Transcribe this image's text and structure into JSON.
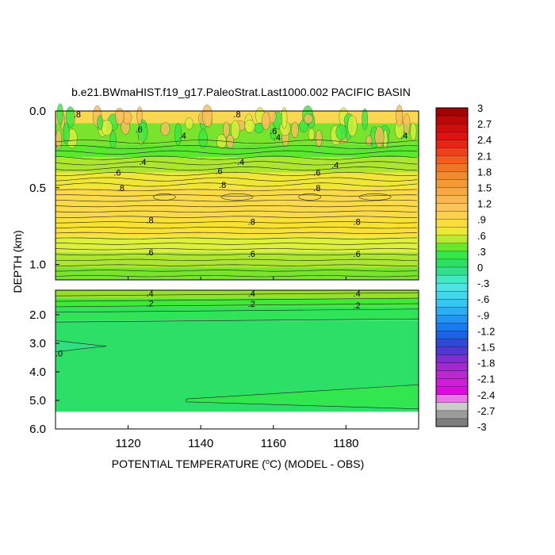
{
  "chart_data": {
    "type": "heatmap",
    "title": "b.e21.BWmaHIST.f19_g17.PaleoStrat.Last1000.002 PACIFIC BASIN",
    "xlabel": "POTENTIAL TEMPERATURE (",
    "xlabel_sup": "o",
    "xlabel_tail": "C) (MODEL - OBS)",
    "ylabel": "DEPTH (km)",
    "xlim": [
      1100,
      1200
    ],
    "x_ticks": [
      1120,
      1140,
      1160,
      1180
    ],
    "upper_panel": {
      "ylim": [
        0.0,
        1.1
      ],
      "y_ticks": [
        0.0,
        0.5,
        1.0
      ],
      "y_tick_labels": [
        "0.0",
        "0.5",
        "1.0"
      ],
      "bands": [
        {
          "depth_top": 0.0,
          "depth_bottom": 0.08,
          "value": 0.9
        },
        {
          "depth_top": 0.08,
          "depth_bottom": 0.22,
          "value": 0.4
        },
        {
          "depth_top": 0.22,
          "depth_bottom": 0.3,
          "value": 0.35
        },
        {
          "depth_top": 0.3,
          "depth_bottom": 0.4,
          "value": 0.5
        },
        {
          "depth_top": 0.4,
          "depth_bottom": 0.5,
          "value": 0.7
        },
        {
          "depth_top": 0.5,
          "depth_bottom": 0.7,
          "value": 0.85
        },
        {
          "depth_top": 0.7,
          "depth_bottom": 0.82,
          "value": 0.75
        },
        {
          "depth_top": 0.82,
          "depth_bottom": 0.92,
          "value": 0.6
        },
        {
          "depth_top": 0.92,
          "depth_bottom": 1.02,
          "value": 0.5
        },
        {
          "depth_top": 1.02,
          "depth_bottom": 1.1,
          "value": 0.4
        }
      ],
      "contour_labels": [
        {
          "x": 1106,
          "depth": 0.02,
          "text": ".8"
        },
        {
          "x": 1123,
          "depth": 0.12,
          "text": ".6"
        },
        {
          "x": 1150,
          "depth": 0.02,
          "text": ".8"
        },
        {
          "x": 1160,
          "depth": 0.13,
          "text": ".6"
        },
        {
          "x": 1135,
          "depth": 0.16,
          "text": ".4"
        },
        {
          "x": 1161,
          "depth": 0.17,
          "text": ".4"
        },
        {
          "x": 1196,
          "depth": 0.16,
          "text": ".4"
        },
        {
          "x": 1124,
          "depth": 0.33,
          "text": ".4"
        },
        {
          "x": 1151,
          "depth": 0.33,
          "text": ".4"
        },
        {
          "x": 1177,
          "depth": 0.35,
          "text": ".4"
        },
        {
          "x": 1117,
          "depth": 0.4,
          "text": ".6"
        },
        {
          "x": 1145,
          "depth": 0.39,
          "text": ".6"
        },
        {
          "x": 1172,
          "depth": 0.4,
          "text": ".6"
        },
        {
          "x": 1118,
          "depth": 0.5,
          "text": ".8"
        },
        {
          "x": 1146,
          "depth": 0.48,
          "text": ".8"
        },
        {
          "x": 1172,
          "depth": 0.5,
          "text": ".8"
        },
        {
          "x": 1126,
          "depth": 0.71,
          "text": ".8"
        },
        {
          "x": 1154,
          "depth": 0.72,
          "text": ".8"
        },
        {
          "x": 1183,
          "depth": 0.72,
          "text": ".8"
        },
        {
          "x": 1126,
          "depth": 0.92,
          "text": ".6"
        },
        {
          "x": 1154,
          "depth": 0.93,
          "text": ".6"
        },
        {
          "x": 1183,
          "depth": 0.93,
          "text": ".6"
        }
      ]
    },
    "lower_panel": {
      "ylim": [
        1.1,
        6.0
      ],
      "y_ticks": [
        2.0,
        3.0,
        4.0,
        5.0,
        6.0
      ],
      "y_tick_labels": [
        "2.0",
        "3.0",
        "4.0",
        "5.0",
        "6.0"
      ],
      "bottom_data_depth": 5.4,
      "bands": [
        {
          "depth_top": 1.1,
          "depth_bottom": 1.4,
          "value": 0.45
        },
        {
          "depth_top": 1.4,
          "depth_bottom": 1.7,
          "value": 0.3
        },
        {
          "depth_top": 1.7,
          "depth_bottom": 2.2,
          "value": 0.15
        },
        {
          "depth_top": 2.2,
          "depth_bottom": 5.4,
          "value": 0.05
        }
      ],
      "contour_labels": [
        {
          "x": 1126,
          "depth": 1.22,
          "text": ".4"
        },
        {
          "x": 1154,
          "depth": 1.22,
          "text": ".4"
        },
        {
          "x": 1183,
          "depth": 1.22,
          "text": ".4"
        },
        {
          "x": 1126,
          "depth": 1.58,
          "text": ".2"
        },
        {
          "x": 1154,
          "depth": 1.6,
          "text": ".2"
        },
        {
          "x": 1183,
          "depth": 1.65,
          "text": ".2"
        },
        {
          "x": 1101,
          "depth": 3.35,
          "text": ".0"
        }
      ]
    },
    "colorbar": {
      "labels": [
        "3",
        "2.7",
        "2.4",
        "2.1",
        "1.8",
        "1.5",
        "1.2",
        ".9",
        ".6",
        ".3",
        "0",
        "-.3",
        "-.6",
        "-.9",
        "-1.2",
        "-1.5",
        "-1.8",
        "-2.1",
        "-2.4",
        "-2.7",
        "-3"
      ],
      "min": -3,
      "max": 3,
      "step": 0.15
    },
    "grid": false,
    "legend": "right colorbar"
  }
}
